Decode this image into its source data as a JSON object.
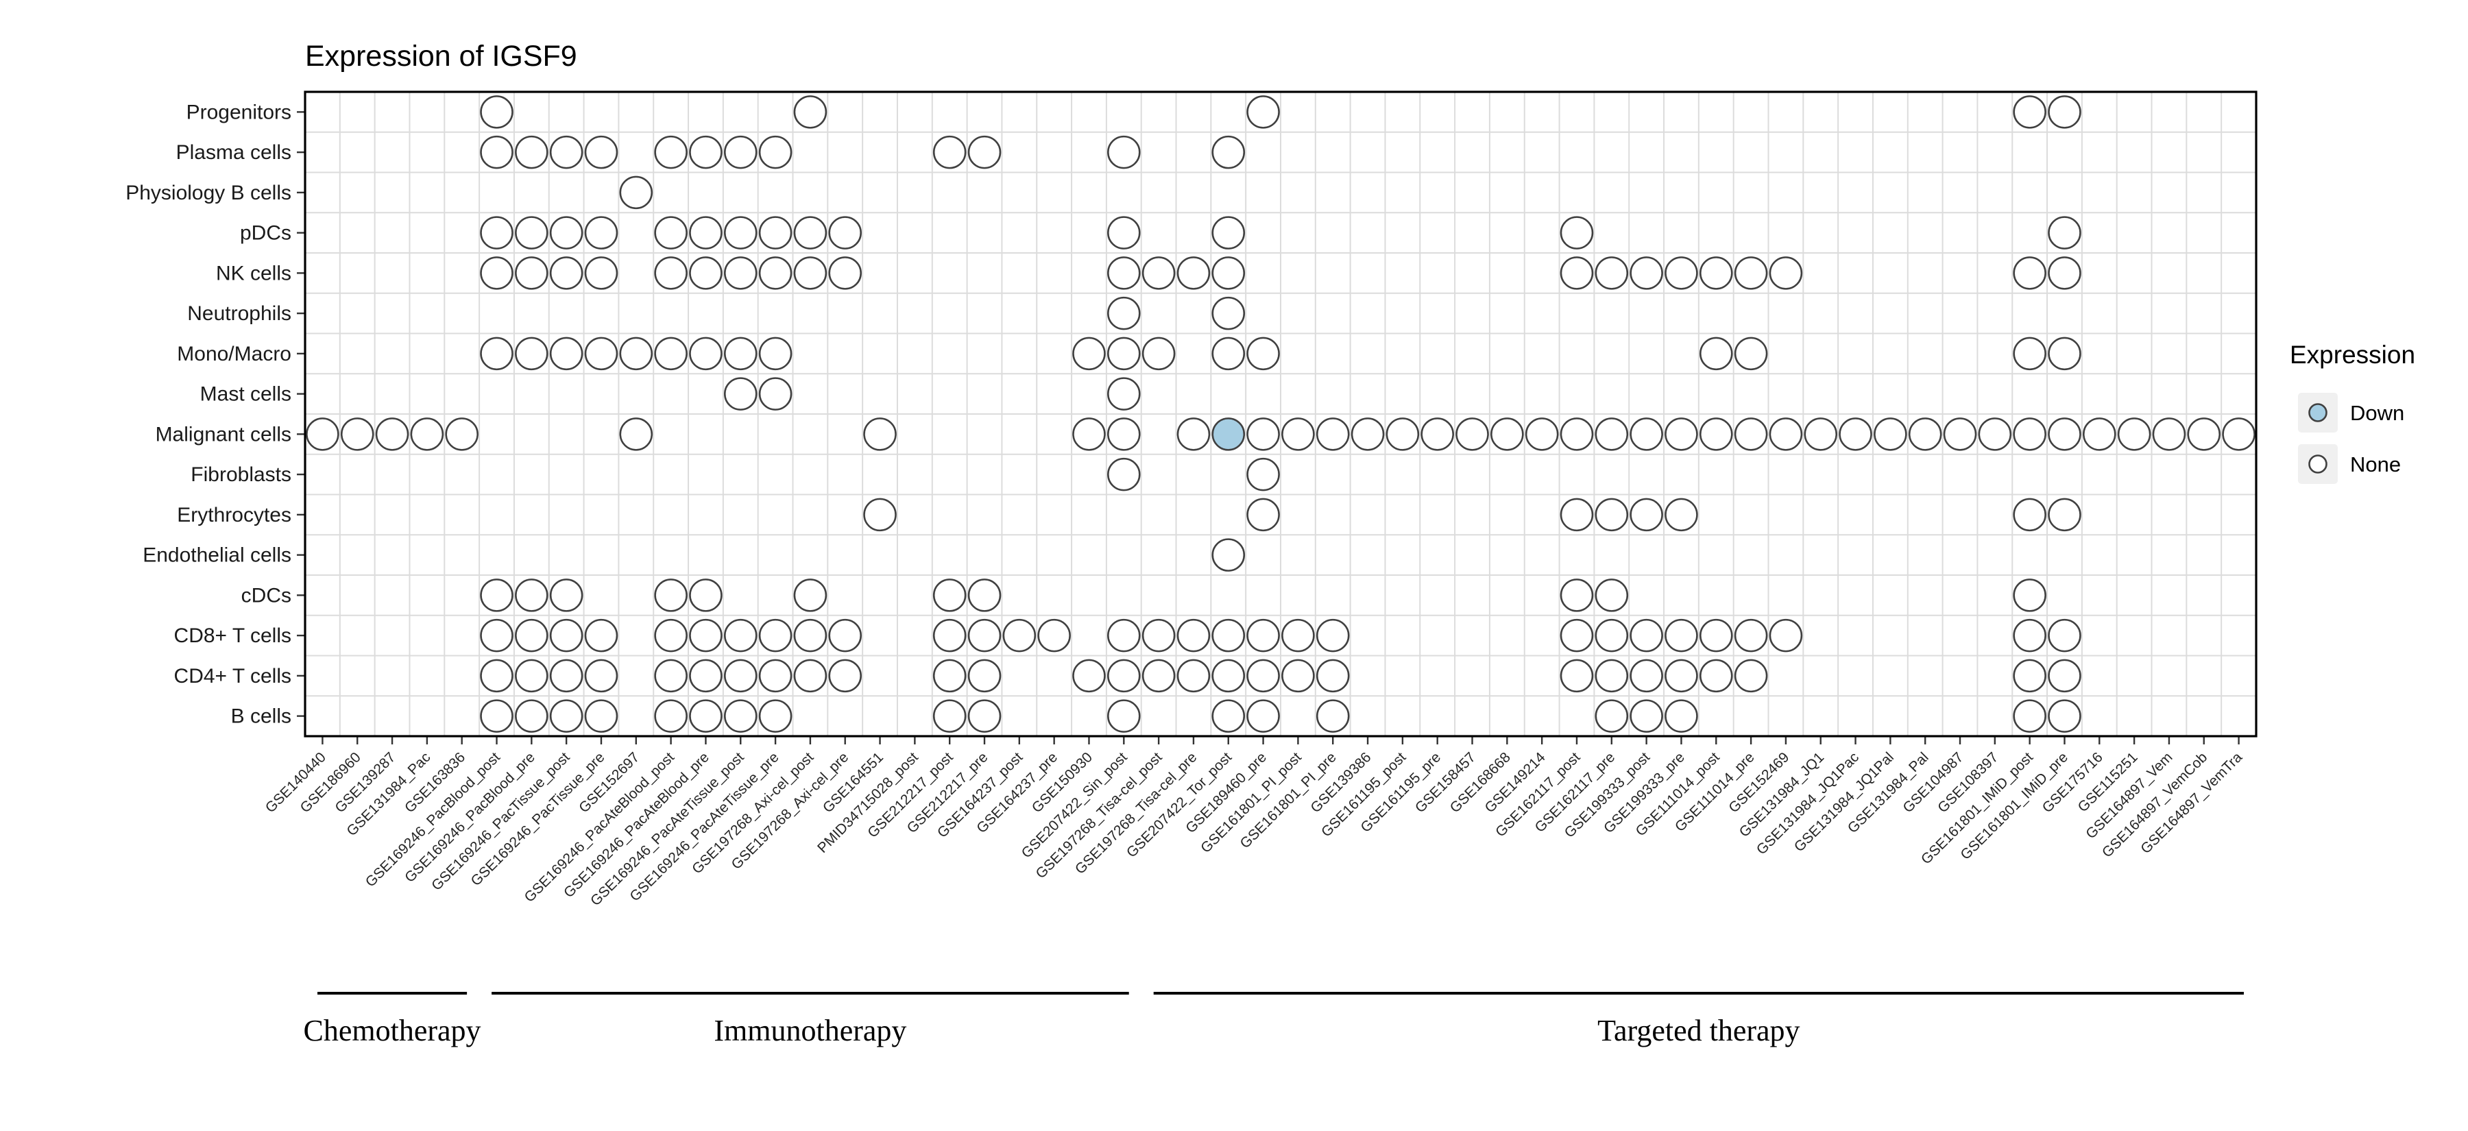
{
  "title": "Expression of IGSF9",
  "legend": {
    "title": "Expression",
    "items": [
      {
        "label": "Down",
        "fill": "#A6CEE3"
      },
      {
        "label": "None",
        "fill": "#FFFFFF"
      }
    ]
  },
  "style": {
    "dot_stroke": "#404040",
    "grid_color": "#DCDCDC",
    "panel_border": "#000000",
    "axis_text_color": "#262626",
    "legend_key_fill": "#F0F0F0",
    "down_fill": "#A6CEE3",
    "none_fill": "#FFFFFF"
  },
  "chart_data": {
    "type": "dot-matrix",
    "title": "Expression of IGSF9",
    "legend_title": "Expression",
    "legend_values": [
      "Down",
      "None"
    ],
    "rows": [
      "Progenitors",
      "Plasma cells",
      "Physiology B cells",
      "pDCs",
      "NK cells",
      "Neutrophils",
      "Mono/Macro",
      "Mast cells",
      "Malignant cells",
      "Fibroblasts",
      "Erythrocytes",
      "Endothelial cells",
      "cDCs",
      "CD8+ T cells",
      "CD4+ T cells",
      "B cells"
    ],
    "columns": [
      "GSE140440",
      "GSE186960",
      "GSE139287",
      "GSE131984_Pac",
      "GSE163836",
      "GSE169246_PacBlood_post",
      "GSE169246_PacBlood_pre",
      "GSE169246_PacTissue_post",
      "GSE169246_PacTissue_pre",
      "GSE152697",
      "GSE169246_PacAteBlood_post",
      "GSE169246_PacAteBlood_pre",
      "GSE169246_PacAteTissue_post",
      "GSE169246_PacAteTissue_pre",
      "GSE197268_Axi-cel_post",
      "GSE197268_Axi-cel_pre",
      "GSE164551",
      "PMID34715028_post",
      "GSE212217_post",
      "GSE212217_pre",
      "GSE164237_post",
      "GSE164237_pre",
      "GSE150930",
      "GSE207422_Sin_post",
      "GSE197268_Tisa-cel_post",
      "GSE197268_Tisa-cel_pre",
      "GSE207422_Tor_post",
      "GSE189460_pre",
      "GSE161801_PI_post",
      "GSE161801_PI_pre",
      "GSE139386",
      "GSE161195_post",
      "GSE161195_pre",
      "GSE158457",
      "GSE168668",
      "GSE149214",
      "GSE162117_post",
      "GSE162117_pre",
      "GSE199333_post",
      "GSE199333_pre",
      "GSE111014_post",
      "GSE111014_pre",
      "GSE152469",
      "GSE131984_JQ1",
      "GSE131984_JQ1Pac",
      "GSE131984_JQ1Pal",
      "GSE131984_Pal",
      "GSE104987",
      "GSE108397",
      "GSE161801_IMiD_post",
      "GSE161801_IMiD_pre",
      "GSE175716",
      "GSE115251",
      "GSE164897_Vem",
      "GSE164897_VemCob",
      "GSE164897_VemTra"
    ],
    "groups": [
      {
        "label": "Chemotherapy",
        "col_start": "GSE140440",
        "col_end": "GSE163836"
      },
      {
        "label": "Immunotherapy",
        "col_start": "GSE169246_PacBlood_post",
        "col_end": "GSE207422_Sin_post"
      },
      {
        "label": "Targeted therapy",
        "col_start": "GSE197268_Tisa-cel_post",
        "col_end": "GSE164897_VemTra"
      }
    ],
    "cells": [
      {
        "row": "Progenitors",
        "none": [
          "GSE169246_PacBlood_post",
          "GSE197268_Axi-cel_post",
          "GSE189460_pre",
          "GSE161801_IMiD_post",
          "GSE161801_IMiD_pre"
        ],
        "down": []
      },
      {
        "row": "Plasma cells",
        "none": [
          "GSE169246_PacBlood_post",
          "GSE169246_PacBlood_pre",
          "GSE169246_PacTissue_post",
          "GSE169246_PacTissue_pre",
          "GSE169246_PacAteBlood_post",
          "GSE169246_PacAteBlood_pre",
          "GSE169246_PacAteTissue_post",
          "GSE169246_PacAteTissue_pre",
          "GSE212217_post",
          "GSE212217_pre",
          "GSE207422_Sin_post",
          "GSE207422_Tor_post"
        ],
        "down": []
      },
      {
        "row": "Physiology B cells",
        "none": [
          "GSE152697"
        ],
        "down": []
      },
      {
        "row": "pDCs",
        "none": [
          "GSE169246_PacBlood_post",
          "GSE169246_PacBlood_pre",
          "GSE169246_PacTissue_post",
          "GSE169246_PacTissue_pre",
          "GSE169246_PacAteBlood_post",
          "GSE169246_PacAteBlood_pre",
          "GSE169246_PacAteTissue_post",
          "GSE169246_PacAteTissue_pre",
          "GSE197268_Axi-cel_post",
          "GSE197268_Axi-cel_pre",
          "GSE207422_Sin_post",
          "GSE207422_Tor_post",
          "GSE162117_post",
          "GSE161801_IMiD_pre"
        ],
        "down": []
      },
      {
        "row": "NK cells",
        "none": [
          "GSE169246_PacBlood_post",
          "GSE169246_PacBlood_pre",
          "GSE169246_PacTissue_post",
          "GSE169246_PacTissue_pre",
          "GSE169246_PacAteBlood_post",
          "GSE169246_PacAteBlood_pre",
          "GSE169246_PacAteTissue_post",
          "GSE169246_PacAteTissue_pre",
          "GSE197268_Axi-cel_post",
          "GSE197268_Axi-cel_pre",
          "GSE207422_Sin_post",
          "GSE197268_Tisa-cel_post",
          "GSE197268_Tisa-cel_pre",
          "GSE207422_Tor_post",
          "GSE162117_post",
          "GSE162117_pre",
          "GSE199333_post",
          "GSE199333_pre",
          "GSE111014_post",
          "GSE111014_pre",
          "GSE152469",
          "GSE161801_IMiD_post",
          "GSE161801_IMiD_pre"
        ],
        "down": []
      },
      {
        "row": "Neutrophils",
        "none": [
          "GSE207422_Sin_post",
          "GSE207422_Tor_post"
        ],
        "down": []
      },
      {
        "row": "Mono/Macro",
        "none": [
          "GSE169246_PacBlood_post",
          "GSE169246_PacBlood_pre",
          "GSE169246_PacTissue_post",
          "GSE169246_PacTissue_pre",
          "GSE152697",
          "GSE169246_PacAteBlood_post",
          "GSE169246_PacAteBlood_pre",
          "GSE169246_PacAteTissue_post",
          "GSE169246_PacAteTissue_pre",
          "GSE150930",
          "GSE207422_Sin_post",
          "GSE197268_Tisa-cel_post",
          "GSE207422_Tor_post",
          "GSE189460_pre",
          "GSE111014_post",
          "GSE111014_pre",
          "GSE161801_IMiD_post",
          "GSE161801_IMiD_pre"
        ],
        "down": []
      },
      {
        "row": "Mast cells",
        "none": [
          "GSE169246_PacAteTissue_post",
          "GSE169246_PacAteTissue_pre",
          "GSE207422_Sin_post"
        ],
        "down": []
      },
      {
        "row": "Malignant cells",
        "none": [
          "GSE140440",
          "GSE186960",
          "GSE139287",
          "GSE131984_Pac",
          "GSE163836",
          "GSE152697",
          "GSE164551",
          "GSE150930",
          "GSE207422_Sin_post",
          "GSE197268_Tisa-cel_pre",
          "GSE189460_pre",
          "GSE161801_PI_post",
          "GSE161801_PI_pre",
          "GSE139386",
          "GSE161195_post",
          "GSE161195_pre",
          "GSE158457",
          "GSE168668",
          "GSE149214",
          "GSE162117_post",
          "GSE162117_pre",
          "GSE199333_post",
          "GSE199333_pre",
          "GSE111014_post",
          "GSE111014_pre",
          "GSE152469",
          "GSE131984_JQ1",
          "GSE131984_JQ1Pac",
          "GSE131984_JQ1Pal",
          "GSE131984_Pal",
          "GSE104987",
          "GSE108397",
          "GSE161801_IMiD_post",
          "GSE161801_IMiD_pre",
          "GSE175716",
          "GSE115251",
          "GSE164897_Vem",
          "GSE164897_VemCob",
          "GSE164897_VemTra"
        ],
        "down": [
          "GSE207422_Tor_post"
        ]
      },
      {
        "row": "Fibroblasts",
        "none": [
          "GSE207422_Sin_post",
          "GSE189460_pre"
        ],
        "down": []
      },
      {
        "row": "Erythrocytes",
        "none": [
          "GSE164551",
          "GSE189460_pre",
          "GSE162117_post",
          "GSE162117_pre",
          "GSE199333_post",
          "GSE199333_pre",
          "GSE161801_IMiD_post",
          "GSE161801_IMiD_pre"
        ],
        "down": []
      },
      {
        "row": "Endothelial cells",
        "none": [
          "GSE207422_Tor_post"
        ],
        "down": []
      },
      {
        "row": "cDCs",
        "none": [
          "GSE169246_PacBlood_post",
          "GSE169246_PacBlood_pre",
          "GSE169246_PacTissue_post",
          "GSE169246_PacAteBlood_post",
          "GSE169246_PacAteBlood_pre",
          "GSE197268_Axi-cel_post",
          "GSE212217_post",
          "GSE212217_pre",
          "GSE162117_post",
          "GSE162117_pre",
          "GSE161801_IMiD_post"
        ],
        "down": []
      },
      {
        "row": "CD8+ T cells",
        "none": [
          "GSE169246_PacBlood_post",
          "GSE169246_PacBlood_pre",
          "GSE169246_PacTissue_post",
          "GSE169246_PacTissue_pre",
          "GSE169246_PacAteBlood_post",
          "GSE169246_PacAteBlood_pre",
          "GSE169246_PacAteTissue_post",
          "GSE169246_PacAteTissue_pre",
          "GSE197268_Axi-cel_post",
          "GSE197268_Axi-cel_pre",
          "GSE212217_post",
          "GSE212217_pre",
          "GSE164237_post",
          "GSE164237_pre",
          "GSE207422_Sin_post",
          "GSE197268_Tisa-cel_post",
          "GSE197268_Tisa-cel_pre",
          "GSE207422_Tor_post",
          "GSE189460_pre",
          "GSE161801_PI_post",
          "GSE161801_PI_pre",
          "GSE162117_post",
          "GSE162117_pre",
          "GSE199333_post",
          "GSE199333_pre",
          "GSE111014_post",
          "GSE111014_pre",
          "GSE152469",
          "GSE161801_IMiD_post",
          "GSE161801_IMiD_pre"
        ],
        "down": []
      },
      {
        "row": "CD4+ T cells",
        "none": [
          "GSE169246_PacBlood_post",
          "GSE169246_PacBlood_pre",
          "GSE169246_PacTissue_post",
          "GSE169246_PacTissue_pre",
          "GSE169246_PacAteBlood_post",
          "GSE169246_PacAteBlood_pre",
          "GSE169246_PacAteTissue_post",
          "GSE169246_PacAteTissue_pre",
          "GSE197268_Axi-cel_post",
          "GSE197268_Axi-cel_pre",
          "GSE212217_post",
          "GSE212217_pre",
          "GSE150930",
          "GSE207422_Sin_post",
          "GSE197268_Tisa-cel_post",
          "GSE197268_Tisa-cel_pre",
          "GSE207422_Tor_post",
          "GSE189460_pre",
          "GSE161801_PI_post",
          "GSE161801_PI_pre",
          "GSE162117_post",
          "GSE162117_pre",
          "GSE199333_post",
          "GSE199333_pre",
          "GSE111014_post",
          "GSE111014_pre",
          "GSE161801_IMiD_post",
          "GSE161801_IMiD_pre"
        ],
        "down": []
      },
      {
        "row": "B cells",
        "none": [
          "GSE169246_PacBlood_post",
          "GSE169246_PacBlood_pre",
          "GSE169246_PacTissue_post",
          "GSE169246_PacTissue_pre",
          "GSE169246_PacAteBlood_post",
          "GSE169246_PacAteBlood_pre",
          "GSE169246_PacAteTissue_post",
          "GSE169246_PacAteTissue_pre",
          "GSE212217_post",
          "GSE212217_pre",
          "GSE207422_Sin_post",
          "GSE207422_Tor_post",
          "GSE189460_pre",
          "GSE161801_PI_pre",
          "GSE162117_pre",
          "GSE199333_post",
          "GSE199333_pre",
          "GSE161801_IMiD_post",
          "GSE161801_IMiD_pre"
        ],
        "down": []
      }
    ]
  }
}
